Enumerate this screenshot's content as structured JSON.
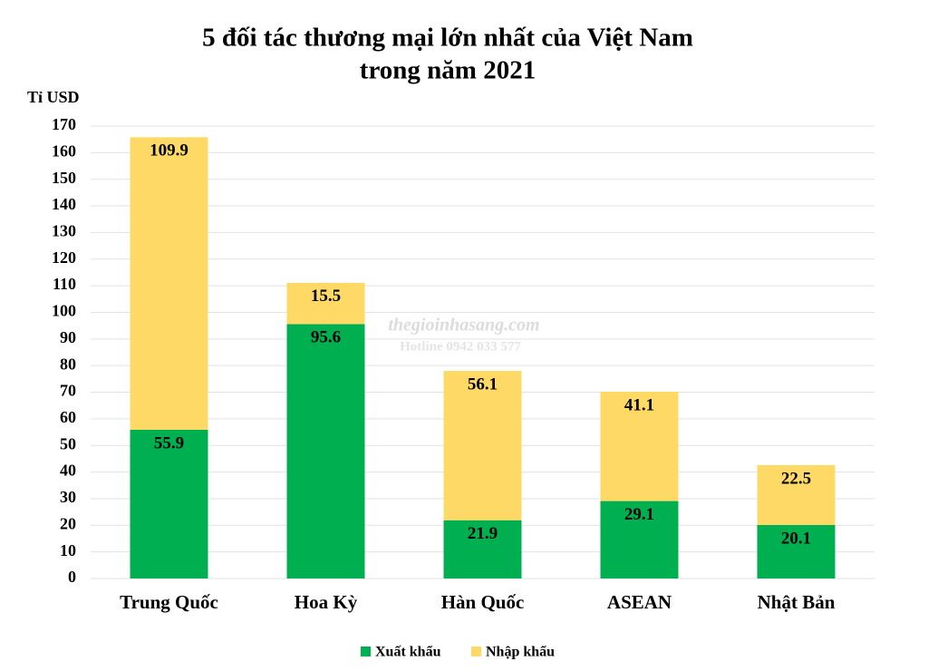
{
  "chart_data": {
    "type": "stacked-bar",
    "title": [
      "5 đối tác thương mại lớn nhất của Việt Nam",
      "trong năm 2021"
    ],
    "y_label": "Tỉ USD",
    "categories": [
      "Trung Quốc",
      "Hoa Kỳ",
      "Hàn Quốc",
      "ASEAN",
      "Nhật Bản"
    ],
    "series": [
      {
        "name": "Xuất khẩu",
        "color": "#00b050",
        "values": [
          55.9,
          95.6,
          21.9,
          29.1,
          20.1
        ]
      },
      {
        "name": "Nhập khẩu",
        "color": "#ffd966",
        "values": [
          109.9,
          15.5,
          56.1,
          41.1,
          22.5
        ]
      }
    ],
    "ylim": [
      0,
      170
    ],
    "yticks": [
      0,
      10,
      20,
      30,
      40,
      50,
      60,
      70,
      80,
      90,
      100,
      110,
      120,
      130,
      140,
      150,
      160,
      170
    ],
    "grid": true,
    "legend": "bottom",
    "watermark": [
      "thegioinhasang.com",
      "Hotline 0942 033 577"
    ]
  }
}
